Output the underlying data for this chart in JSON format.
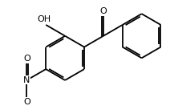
{
  "background_color": "#ffffff",
  "line_color": "#000000",
  "line_width": 1.3,
  "fig_width": 2.12,
  "fig_height": 1.37,
  "dpi": 100,
  "font_size_atoms": 8.0,
  "font_size_sub": 6.0,
  "xlim": [
    0,
    5.5
  ],
  "ylim": [
    0,
    3.5
  ]
}
